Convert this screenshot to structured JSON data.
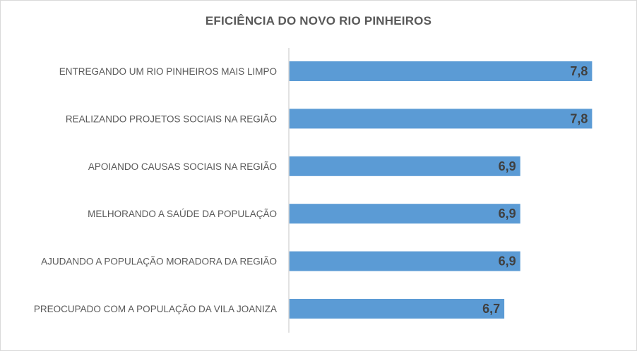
{
  "chart_data": {
    "type": "bar",
    "orientation": "horizontal",
    "title": "EFICIÊNCIA DO NOVO RIO PINHEIROS",
    "categories": [
      "ENTREGANDO UM RIO PINHEIROS MAIS LIMPO",
      "REALIZANDO PROJETOS SOCIAIS NA REGIÃO",
      "APOIANDO CAUSAS SOCIAIS NA REGIÃO",
      "MELHORANDO A SAÚDE DA POPULAÇÃO",
      "AJUDANDO A POPULAÇÃO MORADORA DA REGIÃO",
      "PREOCUPADO COM A POPULAÇÃO DA VILA JOANIZA"
    ],
    "values": [
      7.8,
      7.8,
      6.9,
      6.9,
      6.9,
      6.7
    ],
    "value_labels": [
      "7,8",
      "7,8",
      "6,9",
      "6,9",
      "6,9",
      "6,7"
    ],
    "xlim": [
      4,
      8
    ],
    "bar_color": "#5B9BD5",
    "axis_color": "#d9d9d9",
    "grid": false,
    "legend": "none"
  }
}
